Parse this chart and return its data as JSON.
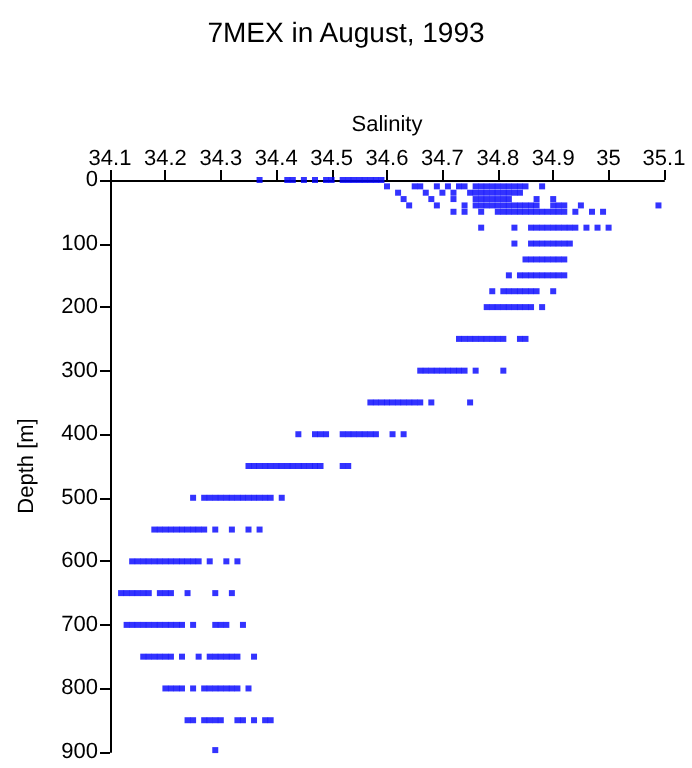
{
  "chart_data": {
    "type": "scatter",
    "title": "7MEX in August, 1993",
    "xlabel": "Salinity",
    "ylabel": "Depth [m]",
    "xlim": [
      34.1,
      35.1
    ],
    "xticks": [
      34.1,
      34.2,
      34.3,
      34.4,
      34.5,
      34.6,
      34.7,
      34.8,
      34.9,
      35,
      35.1
    ],
    "ylim": [
      900,
      0
    ],
    "yticks": [
      0,
      100,
      200,
      300,
      400,
      500,
      600,
      700,
      800,
      900
    ],
    "grid": false,
    "marker": "square",
    "series": [
      {
        "color": "#0000ff",
        "x": [
          34.37,
          34.42,
          34.43,
          34.45,
          34.47,
          34.49,
          34.5,
          34.52,
          34.53,
          34.54,
          34.55,
          34.56,
          34.57,
          34.58,
          34.59
        ],
        "values": [
          0,
          0,
          0,
          0,
          0,
          0,
          0,
          0,
          0,
          0,
          0,
          0,
          0,
          0,
          0
        ]
      },
      {
        "color": "#0000ff",
        "x": [
          34.6,
          34.65,
          34.66,
          34.69,
          34.71,
          34.73,
          34.74,
          34.76,
          34.77,
          34.78,
          34.79,
          34.8,
          34.81,
          34.82,
          34.83,
          34.84,
          34.85,
          34.88
        ],
        "values": [
          10,
          10,
          10,
          10,
          10,
          10,
          10,
          10,
          10,
          10,
          10,
          10,
          10,
          10,
          10,
          10,
          10,
          10
        ]
      },
      {
        "color": "#0000ff",
        "x": [
          34.62,
          34.67,
          34.7,
          34.72,
          34.75,
          34.76,
          34.77,
          34.78,
          34.79,
          34.8,
          34.81,
          34.82,
          34.83,
          34.84
        ],
        "values": [
          20,
          20,
          20,
          20,
          20,
          20,
          20,
          20,
          20,
          20,
          20,
          20,
          20,
          20
        ]
      },
      {
        "color": "#0000ff",
        "x": [
          34.63,
          34.68,
          34.72,
          34.76,
          34.77,
          34.78,
          34.79,
          34.8,
          34.81,
          34.82,
          34.87,
          34.9
        ],
        "values": [
          30,
          30,
          30,
          30,
          30,
          30,
          30,
          30,
          30,
          30,
          30,
          30
        ]
      },
      {
        "color": "#0000ff",
        "x": [
          34.64,
          34.69,
          34.74,
          34.76,
          34.77,
          34.78,
          34.79,
          34.8,
          34.81,
          34.82,
          34.83,
          34.84,
          34.85,
          34.86,
          34.87,
          34.9,
          34.91,
          34.92,
          34.95,
          35.09
        ],
        "values": [
          40,
          40,
          40,
          40,
          40,
          40,
          40,
          40,
          40,
          40,
          40,
          40,
          40,
          40,
          40,
          40,
          40,
          40,
          40,
          40
        ]
      },
      {
        "color": "#0000ff",
        "x": [
          34.72,
          34.74,
          34.77,
          34.8,
          34.81,
          34.82,
          34.83,
          34.84,
          34.85,
          34.86,
          34.87,
          34.88,
          34.89,
          34.9,
          34.91,
          34.92,
          34.94,
          34.97,
          34.99
        ],
        "values": [
          50,
          50,
          50,
          50,
          50,
          50,
          50,
          50,
          50,
          50,
          50,
          50,
          50,
          50,
          50,
          50,
          50,
          50,
          50
        ]
      },
      {
        "color": "#0000ff",
        "x": [
          34.77,
          34.83,
          34.86,
          34.87,
          34.88,
          34.89,
          34.9,
          34.91,
          34.92,
          34.93,
          34.94,
          34.96,
          34.98,
          35.0
        ],
        "values": [
          75,
          75,
          75,
          75,
          75,
          75,
          75,
          75,
          75,
          75,
          75,
          75,
          75,
          75
        ]
      },
      {
        "color": "#0000ff",
        "x": [
          34.83,
          34.86,
          34.87,
          34.88,
          34.89,
          34.9,
          34.91,
          34.92,
          34.93
        ],
        "values": [
          100,
          100,
          100,
          100,
          100,
          100,
          100,
          100,
          100
        ]
      },
      {
        "color": "#0000ff",
        "x": [
          34.85,
          34.86,
          34.87,
          34.88,
          34.89,
          34.9,
          34.91,
          34.92
        ],
        "values": [
          125,
          125,
          125,
          125,
          125,
          125,
          125,
          125
        ]
      },
      {
        "color": "#0000ff",
        "x": [
          34.82,
          34.84,
          34.85,
          34.86,
          34.87,
          34.88,
          34.89,
          34.9,
          34.91,
          34.92
        ],
        "values": [
          150,
          150,
          150,
          150,
          150,
          150,
          150,
          150,
          150,
          150
        ]
      },
      {
        "color": "#0000ff",
        "x": [
          34.79,
          34.81,
          34.82,
          34.83,
          34.84,
          34.85,
          34.86,
          34.87,
          34.9
        ],
        "values": [
          175,
          175,
          175,
          175,
          175,
          175,
          175,
          175,
          175
        ]
      },
      {
        "color": "#0000ff",
        "x": [
          34.78,
          34.79,
          34.8,
          34.81,
          34.82,
          34.83,
          34.84,
          34.85,
          34.86,
          34.88
        ],
        "values": [
          200,
          200,
          200,
          200,
          200,
          200,
          200,
          200,
          200,
          200
        ]
      },
      {
        "color": "#0000ff",
        "x": [
          34.73,
          34.74,
          34.75,
          34.76,
          34.77,
          34.78,
          34.79,
          34.8,
          34.81,
          34.84,
          34.85
        ],
        "values": [
          250,
          250,
          250,
          250,
          250,
          250,
          250,
          250,
          250,
          250,
          250
        ]
      },
      {
        "color": "#0000ff",
        "x": [
          34.66,
          34.67,
          34.68,
          34.69,
          34.7,
          34.71,
          34.72,
          34.73,
          34.74,
          34.76,
          34.81
        ],
        "values": [
          300,
          300,
          300,
          300,
          300,
          300,
          300,
          300,
          300,
          300,
          300
        ]
      },
      {
        "color": "#0000ff",
        "x": [
          34.57,
          34.58,
          34.59,
          34.6,
          34.61,
          34.62,
          34.63,
          34.64,
          34.65,
          34.66,
          34.68,
          34.75
        ],
        "values": [
          350,
          350,
          350,
          350,
          350,
          350,
          350,
          350,
          350,
          350,
          350,
          350
        ]
      },
      {
        "color": "#0000ff",
        "x": [
          34.44,
          34.47,
          34.48,
          34.49,
          34.52,
          34.53,
          34.54,
          34.55,
          34.56,
          34.57,
          34.58,
          34.61,
          34.63
        ],
        "values": [
          400,
          400,
          400,
          400,
          400,
          400,
          400,
          400,
          400,
          400,
          400,
          400,
          400
        ]
      },
      {
        "color": "#0000ff",
        "x": [
          34.35,
          34.36,
          34.37,
          34.38,
          34.39,
          34.4,
          34.41,
          34.42,
          34.43,
          34.44,
          34.45,
          34.46,
          34.47,
          34.48,
          34.52,
          34.53
        ],
        "values": [
          450,
          450,
          450,
          450,
          450,
          450,
          450,
          450,
          450,
          450,
          450,
          450,
          450,
          450,
          450,
          450
        ]
      },
      {
        "color": "#0000ff",
        "x": [
          34.25,
          34.27,
          34.28,
          34.29,
          34.3,
          34.31,
          34.32,
          34.33,
          34.34,
          34.35,
          34.36,
          34.37,
          34.38,
          34.39,
          34.41
        ],
        "values": [
          500,
          500,
          500,
          500,
          500,
          500,
          500,
          500,
          500,
          500,
          500,
          500,
          500,
          500,
          500
        ]
      },
      {
        "color": "#0000ff",
        "x": [
          34.18,
          34.19,
          34.2,
          34.21,
          34.22,
          34.23,
          34.24,
          34.25,
          34.26,
          34.27,
          34.29,
          34.32,
          34.35,
          34.37
        ],
        "values": [
          550,
          550,
          550,
          550,
          550,
          550,
          550,
          550,
          550,
          550,
          550,
          550,
          550,
          550
        ]
      },
      {
        "color": "#0000ff",
        "x": [
          34.14,
          34.15,
          34.16,
          34.17,
          34.18,
          34.19,
          34.2,
          34.21,
          34.22,
          34.23,
          34.24,
          34.25,
          34.26,
          34.28,
          34.31,
          34.33
        ],
        "values": [
          600,
          600,
          600,
          600,
          600,
          600,
          600,
          600,
          600,
          600,
          600,
          600,
          600,
          600,
          600,
          600
        ]
      },
      {
        "color": "#0000ff",
        "x": [
          34.12,
          34.13,
          34.14,
          34.15,
          34.16,
          34.17,
          34.19,
          34.2,
          34.21,
          34.24,
          34.29,
          34.32
        ],
        "values": [
          650,
          650,
          650,
          650,
          650,
          650,
          650,
          650,
          650,
          650,
          650,
          650
        ]
      },
      {
        "color": "#0000ff",
        "x": [
          34.13,
          34.14,
          34.15,
          34.16,
          34.17,
          34.18,
          34.19,
          34.2,
          34.21,
          34.22,
          34.23,
          34.25,
          34.29,
          34.3,
          34.31,
          34.34
        ],
        "values": [
          700,
          700,
          700,
          700,
          700,
          700,
          700,
          700,
          700,
          700,
          700,
          700,
          700,
          700,
          700,
          700
        ]
      },
      {
        "color": "#0000ff",
        "x": [
          34.16,
          34.17,
          34.18,
          34.19,
          34.2,
          34.21,
          34.23,
          34.26,
          34.28,
          34.29,
          34.3,
          34.31,
          34.32,
          34.33,
          34.36
        ],
        "values": [
          750,
          750,
          750,
          750,
          750,
          750,
          750,
          750,
          750,
          750,
          750,
          750,
          750,
          750,
          750
        ]
      },
      {
        "color": "#0000ff",
        "x": [
          34.2,
          34.21,
          34.22,
          34.23,
          34.25,
          34.27,
          34.28,
          34.29,
          34.3,
          34.31,
          34.32,
          34.33,
          34.35
        ],
        "values": [
          800,
          800,
          800,
          800,
          800,
          800,
          800,
          800,
          800,
          800,
          800,
          800,
          800
        ]
      },
      {
        "color": "#0000ff",
        "x": [
          34.24,
          34.25,
          34.27,
          34.28,
          34.29,
          34.3,
          34.33,
          34.34,
          34.36,
          34.38,
          34.39
        ],
        "values": [
          850,
          850,
          850,
          850,
          850,
          850,
          850,
          850,
          850,
          850,
          850
        ]
      },
      {
        "color": "#0000ff",
        "x": [
          34.29
        ],
        "values": [
          897
        ]
      }
    ]
  }
}
